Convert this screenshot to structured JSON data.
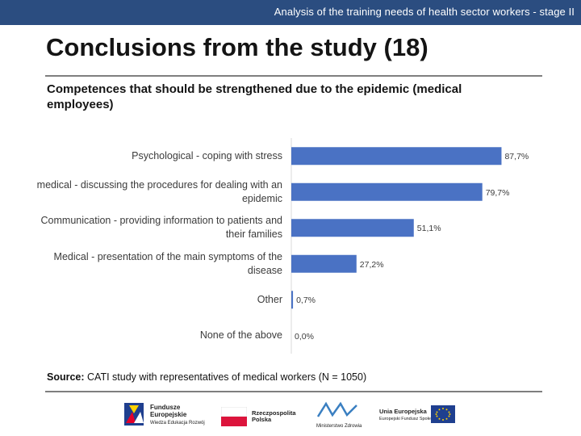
{
  "header": {
    "banner": "Analysis of the training needs of health sector workers - stage II"
  },
  "page": {
    "title": "Conclusions from the study (18)",
    "subtitle": "Competences that should be strengthened due to the epidemic (medical employees)"
  },
  "chart_data": {
    "type": "bar",
    "orientation": "horizontal",
    "categories": [
      "Psychological - coping with stress",
      "medical - discussing the procedures for dealing with an epidemic",
      "Communication - providing information to patients and their families",
      "Medical - presentation of the main symptoms of the disease",
      "Other",
      "None of the above"
    ],
    "values": [
      87.7,
      79.7,
      51.1,
      27.2,
      0.7,
      0.0
    ],
    "value_labels": [
      "87,7%",
      "79,7%",
      "51,1%",
      "27,2%",
      "0,7%",
      "0,0%"
    ],
    "xlim": [
      0,
      100
    ],
    "grid": false,
    "bar_color": "#4a72c4"
  },
  "source": {
    "label": "Source:",
    "text": "CATI study with representatives of medical workers (N = 1050)"
  },
  "footer": {
    "logo1": [
      "Fundusze",
      "Europejskie",
      "Wiedza Edukacja Rozwój"
    ],
    "logo2": [
      "Rzeczpospolita",
      "Polska"
    ],
    "logo3": "Ministerstwo Zdrowia",
    "logo4": [
      "Unia Europejska",
      "Europejski Fundusz Społeczny"
    ],
    "colors": {
      "poland_red": "#dc143c",
      "eu_blue": "#1f3f8f",
      "eu_yellow": "#ffd200",
      "funds_blue": "#1f3f8f"
    }
  }
}
